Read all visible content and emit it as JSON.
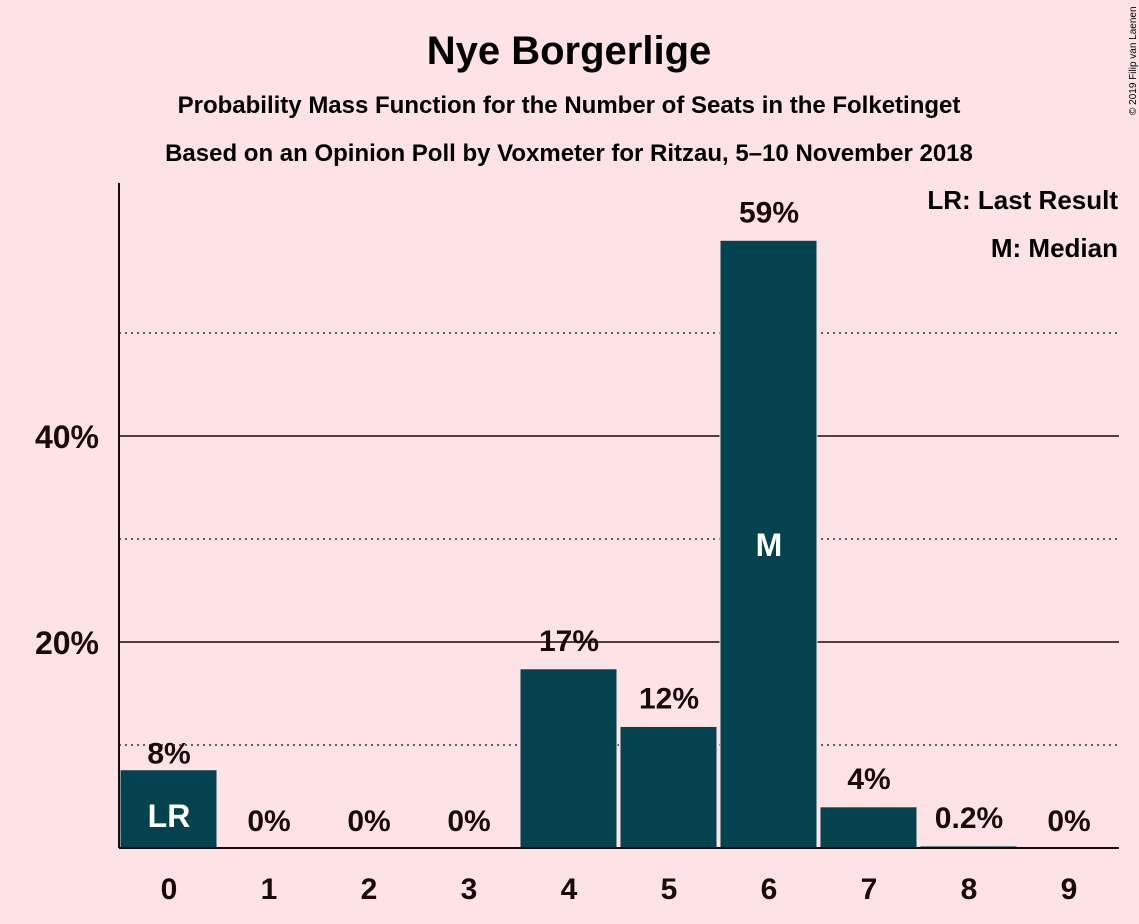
{
  "copyright": "© 2019 Filip van Laenen",
  "colors": {
    "background": "#fde2e6",
    "bar": "#03434f",
    "text": "#1a0a0a"
  },
  "legend": {
    "lr": "LR: Last Result",
    "m": "M: Median"
  },
  "chart_data": {
    "type": "bar",
    "title": "Nye Borgerlige",
    "subtitle": "Probability Mass Function for the Number of Seats in the Folketinget",
    "subtitle2": "Based on an Opinion Poll by Voxmeter for Ritzau, 5–10 November 2018",
    "xlabel": "",
    "ylabel": "",
    "categories": [
      "0",
      "1",
      "2",
      "3",
      "4",
      "5",
      "6",
      "7",
      "8",
      "9"
    ],
    "values": [
      7.6,
      0,
      0,
      0,
      17.4,
      11.8,
      59.0,
      4.0,
      0.2,
      0
    ],
    "data_labels": [
      "8%",
      "0%",
      "0%",
      "0%",
      "17%",
      "12%",
      "59%",
      "4%",
      "0.2%",
      "0%"
    ],
    "bar_markers": {
      "0": "LR",
      "6": "M"
    },
    "ylim": [
      0,
      64
    ],
    "yticks": [
      {
        "value": 20,
        "label": "20%"
      },
      {
        "value": 40,
        "label": "40%"
      }
    ],
    "major_gridlines": [
      20,
      40
    ],
    "minor_gridlines": [
      10,
      30,
      50
    ],
    "grid": true,
    "legend_placement": "top-right"
  }
}
